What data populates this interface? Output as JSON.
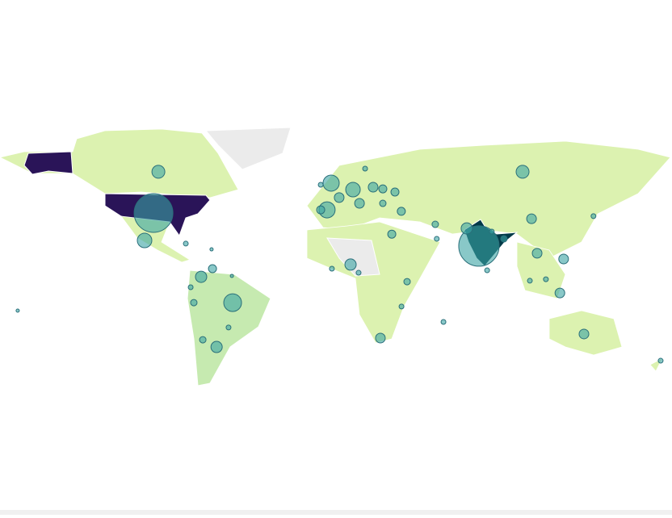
{
  "chart_data": {
    "type": "bubble-map",
    "lon": [
      76.6,
      -97.8,
      -2.6,
      -55.4,
      -102.6,
      100,
      -95.2,
      -4.8,
      9.1,
      19.9,
      12.6,
      -64,
      23.8,
      7.8,
      132.9,
      104.8,
      70.1,
      122,
      120,
      107.8,
      -72.3,
      -66.2,
      -76.2,
      -71.4,
      35,
      29.9,
      38.1,
      53.2,
      54,
      138,
      174,
      81,
      90,
      103.9,
      112.5,
      -8.2,
      -8.2,
      25.1,
      15.6,
      1.7,
      31.6,
      25.1,
      12.1,
      -2.2,
      -80.5,
      -66.7,
      -55.8,
      -170.6,
      -77.9,
      -57.6,
      83.5,
      57.6,
      35.1
    ],
    "lat": [
      19.6,
      37.4,
      53.5,
      -10.9,
      22.6,
      59.6,
      59.6,
      39.1,
      50,
      51.3,
      42.6,
      -34.8,
      -30,
      9.6,
      -27.8,
      34.3,
      29.1,
      12.6,
      -5.7,
      15.7,
      3,
      7.4,
      -10.9,
      -30.9,
      38.3,
      26,
      0.4,
      31.3,
      23.5,
      35.7,
      -42.2,
      6.5,
      23.5,
      0.9,
      1.7,
      52.6,
      39.1,
      50.4,
      61.3,
      45.7,
      48.7,
      42.6,
      5.2,
      7.4,
      20.9,
      17.8,
      3.5,
      -15.2,
      -2.6,
      -24.3,
      27.4,
      -21.3,
      -13
    ],
    "values": [
      625,
      576,
      100,
      121,
      81,
      64,
      64,
      100,
      81,
      36,
      36,
      49,
      36,
      49,
      36,
      36,
      49,
      36,
      36,
      36,
      49,
      25,
      16,
      16,
      25,
      25,
      16,
      16,
      9,
      9,
      9,
      9,
      16,
      9,
      9,
      9,
      25,
      25,
      9,
      36,
      25,
      16,
      9,
      9,
      9,
      4,
      4,
      4,
      9,
      9,
      9,
      9,
      9
    ],
    "color": "#3aa3a3",
    "stroke": "#2a6f7a"
  }
}
